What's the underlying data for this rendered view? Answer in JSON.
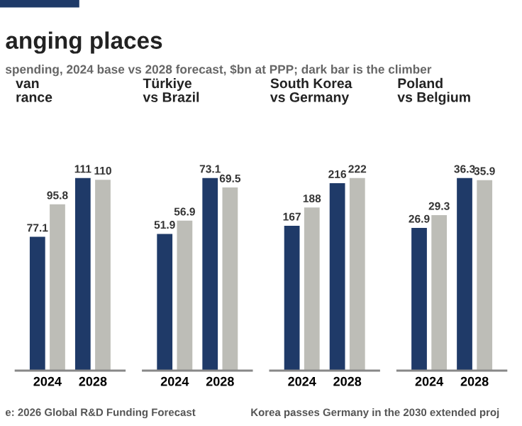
{
  "chart_data": [
    {
      "type": "other",
      "title": "anging places",
      "subtitle": "spending, 2024 base vs 2028 forecast, $bn at PPP; dark bar is the climber",
      "annotations": [
        "e: 2026 Global R&D Funding Forecast",
        "Korea passes Germany in the 2030 extended proj"
      ]
    },
    {
      "type": "bar",
      "title": "van\nrance",
      "categories": [
        "2024",
        "2028"
      ],
      "data_labels": true,
      "grid": false,
      "legend": false,
      "series": [
        {
          "color": "#1f3a68",
          "values": [
            77.1,
            111
          ]
        },
        {
          "color": "#bdbdb7",
          "values": [
            95.8,
            110
          ]
        }
      ]
    },
    {
      "type": "bar",
      "title": "Türkiye\nvs Brazil",
      "categories": [
        "2024",
        "2028"
      ],
      "data_labels": true,
      "grid": false,
      "legend": false,
      "series": [
        {
          "color": "#1f3a68",
          "values": [
            51.9,
            73.1
          ]
        },
        {
          "color": "#bdbdb7",
          "values": [
            56.9,
            69.5
          ]
        }
      ]
    },
    {
      "type": "bar",
      "title": "South Korea\nvs Germany",
      "categories": [
        "2024",
        "2028"
      ],
      "data_labels": true,
      "grid": false,
      "legend": false,
      "series": [
        {
          "color": "#1f3a68",
          "values": [
            167,
            216
          ]
        },
        {
          "color": "#bdbdb7",
          "values": [
            188,
            222
          ]
        }
      ]
    },
    {
      "type": "bar",
      "title": "Poland\nvs Belgium",
      "categories": [
        "2024",
        "2028"
      ],
      "data_labels": true,
      "grid": false,
      "legend": false,
      "series": [
        {
          "color": "#1f3a68",
          "values": [
            26.9,
            36.3
          ]
        },
        {
          "color": "#bdbdb7",
          "values": [
            29.3,
            35.9
          ]
        }
      ]
    }
  ]
}
